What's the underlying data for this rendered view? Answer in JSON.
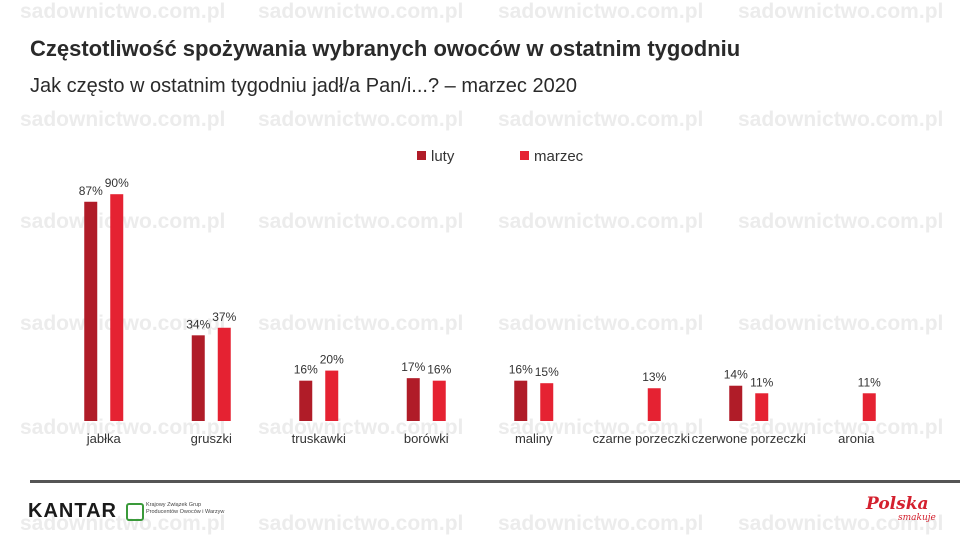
{
  "title": "Częstotliwość spożywania wybranych owoców w ostatnim tygodniu",
  "subtitle": "Jak często w ostatnim tygodniu jadł/a Pan/i...? – marzec 2020",
  "watermark_text": "sadownictwo.com.pl",
  "footer": {
    "brand": "KANTAR",
    "partner_line1": "Krajowy Związek Grup",
    "partner_line2": "Producentów Owoców i Warzyw",
    "logo_main": "Polska",
    "logo_sub": "smakuje"
  },
  "chart_data": {
    "type": "bar",
    "categories": [
      "jabłka",
      "gruszki",
      "truskawki",
      "borówki",
      "maliny",
      "czarne porzeczki",
      "czerwone porzeczki",
      "aronia"
    ],
    "series": [
      {
        "name": "luty",
        "color": "#b01c28",
        "values": [
          87,
          34,
          16,
          17,
          16,
          null,
          14,
          null
        ],
        "labels": [
          "87%",
          "34%",
          "16%",
          "17%",
          "16%",
          "",
          "14%",
          ""
        ]
      },
      {
        "name": "marzec",
        "color": "#e52232",
        "values": [
          90,
          37,
          20,
          16,
          15,
          13,
          11,
          11
        ],
        "labels": [
          "90%",
          "37%",
          "20%",
          "16%",
          "15%",
          "13%",
          "11%",
          "11%"
        ]
      }
    ],
    "legend_position": "top",
    "ylim": [
      0,
      100
    ],
    "grid": false
  }
}
